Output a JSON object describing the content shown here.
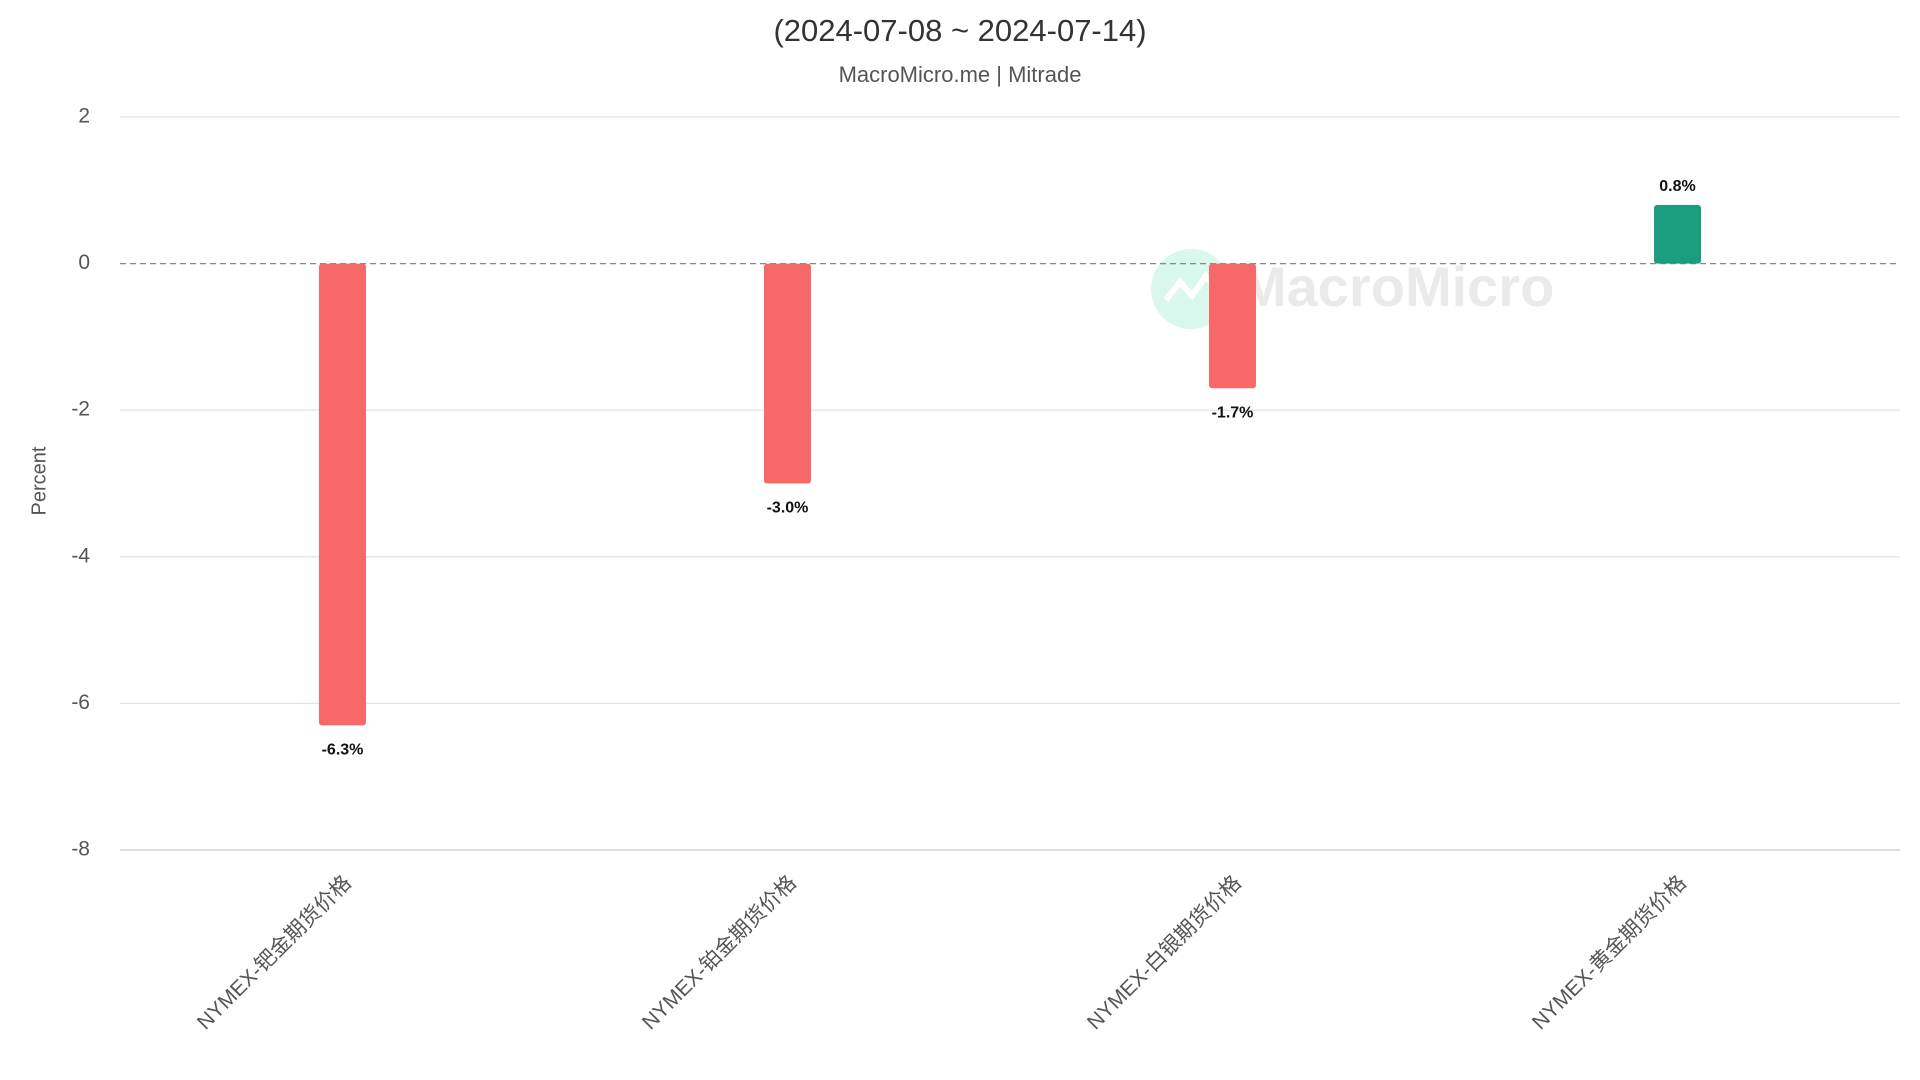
{
  "chart_data": {
    "type": "bar",
    "title": "(2024-07-08 ~ 2024-07-14)",
    "subtitle": "MacroMicro.me | Mitrade",
    "y_label": "Percent",
    "watermark": "MacroMicro",
    "categories": [
      "NYMEX-钯金期货价格",
      "NYMEX-铂金期货价格",
      "NYMEX-白银期货价格",
      "NYMEX-黄金期货价格"
    ],
    "values": [
      -6.3,
      -3.0,
      -1.7,
      0.8
    ],
    "value_labels": [
      "-6.3%",
      "-3.0%",
      "-1.7%",
      "0.8%"
    ],
    "colors": [
      "#f76868",
      "#f76868",
      "#f76868",
      "#1a9e7e"
    ],
    "ylim": [
      -8,
      2
    ],
    "yticks": [
      -8,
      -6,
      -4,
      -2,
      0,
      2
    ],
    "grid": true
  }
}
